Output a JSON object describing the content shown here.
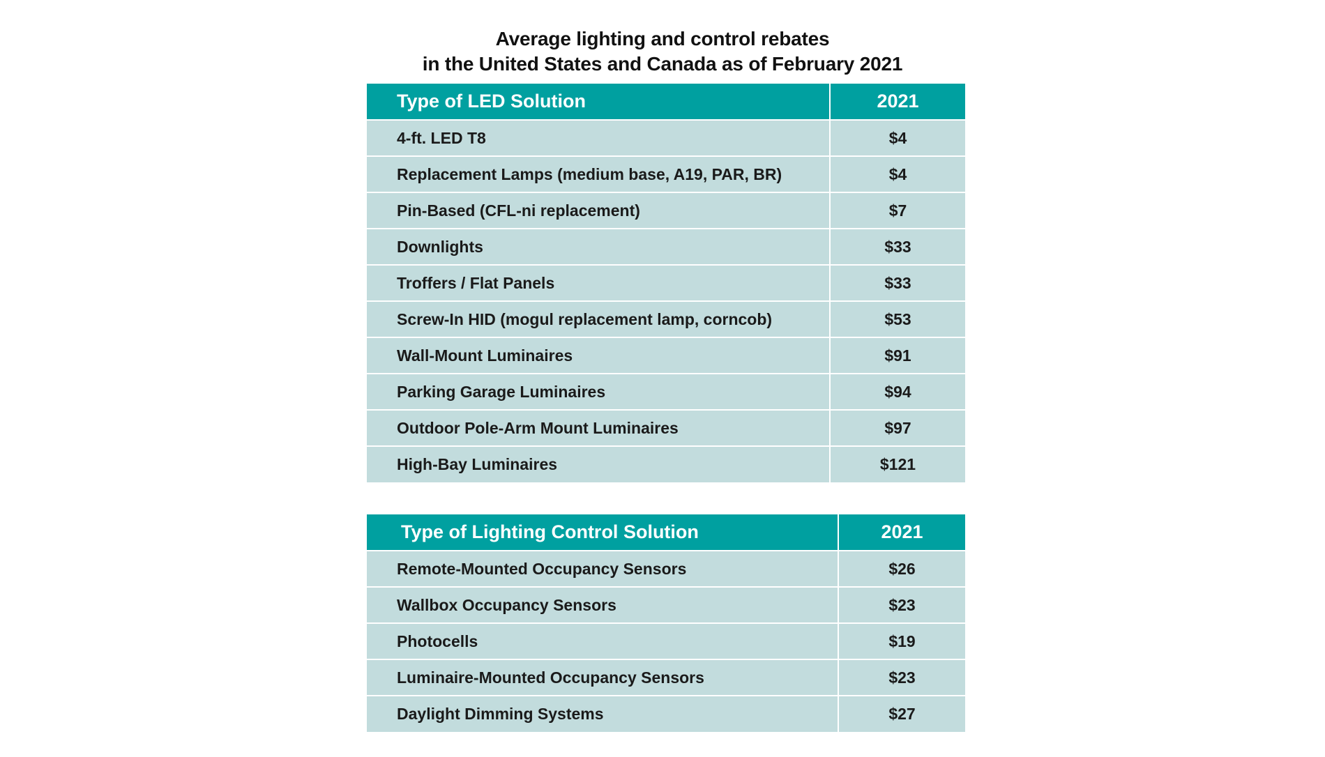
{
  "title": {
    "line1": "Average lighting and control rebates",
    "line2": "in the United States and Canada as of February 2021"
  },
  "chart_data": [
    {
      "type": "table",
      "title": "Average lighting and control rebates in the United States and Canada as of February 2021",
      "columns": [
        "Type of LED Solution",
        "2021"
      ],
      "rows": [
        {
          "label": "4-ft. LED T8",
          "value": "$4"
        },
        {
          "label": "Replacement Lamps (medium base, A19, PAR, BR)",
          "value": "$4"
        },
        {
          "label": "Pin-Based (CFL-ni replacement)",
          "value": "$7"
        },
        {
          "label": "Downlights",
          "value": "$33"
        },
        {
          "label": "Troffers / Flat Panels",
          "value": "$33"
        },
        {
          "label": "Screw-In HID (mogul replacement lamp, corncob)",
          "value": "$53"
        },
        {
          "label": "Wall-Mount Luminaires",
          "value": "$91"
        },
        {
          "label": "Parking Garage Luminaires",
          "value": "$94"
        },
        {
          "label": "Outdoor Pole-Arm Mount Luminaires",
          "value": "$97"
        },
        {
          "label": "High-Bay Luminaires",
          "value": "$121"
        }
      ]
    },
    {
      "type": "table",
      "columns": [
        "Type of Lighting Control Solution",
        "2021"
      ],
      "rows": [
        {
          "label": "Remote-Mounted Occupancy Sensors",
          "value": "$26"
        },
        {
          "label": "Wallbox Occupancy Sensors",
          "value": "$23"
        },
        {
          "label": "Photocells",
          "value": "$19"
        },
        {
          "label": "Luminaire-Mounted Occupancy Sensors",
          "value": "$23"
        },
        {
          "label": "Daylight Dimming Systems",
          "value": "$27"
        }
      ]
    }
  ],
  "colors": {
    "header_bg": "#00a0a0",
    "header_text": "#ffffff",
    "row_bg": "#c2dcdd",
    "row_text": "#1a1a1a",
    "grid": "#ffffff"
  }
}
